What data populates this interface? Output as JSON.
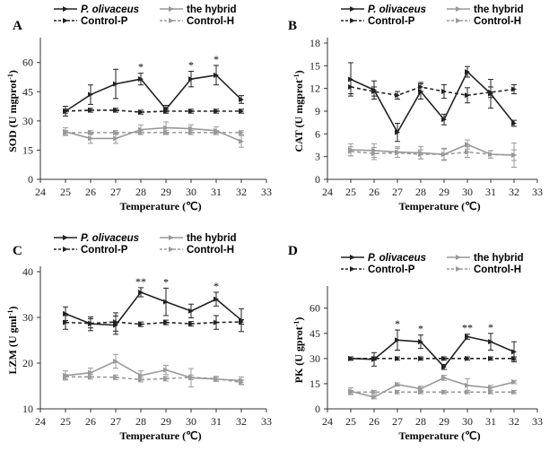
{
  "chart_data": [
    {
      "type": "line",
      "panel_letter": "A",
      "xlabel": "Temperature (℃)",
      "ylabel": "SOD (U mgprot",
      "ylabel_sup": "-1",
      "ylabel_close": ")",
      "x_ticks": [
        24,
        25,
        26,
        27,
        28,
        29,
        30,
        31,
        32,
        33
      ],
      "y_ticks": [
        0,
        15,
        30,
        45,
        60
      ],
      "xlim": [
        24,
        33
      ],
      "ylim": [
        0,
        70
      ],
      "x": [
        25,
        26,
        27,
        28,
        29,
        30,
        31,
        32
      ],
      "series": [
        {
          "name": "P. olivaceus",
          "values": [
            35,
            43.5,
            49,
            51.5,
            36,
            51.5,
            53.5,
            41
          ],
          "err": [
            2.5,
            5,
            7.5,
            3,
            2,
            4,
            5,
            2
          ]
        },
        {
          "name": "the hybrid",
          "values": [
            24.5,
            21,
            21,
            25.5,
            26.5,
            26,
            25,
            19.5
          ],
          "err": [
            2,
            2.5,
            2.5,
            2.5,
            3,
            2,
            2,
            3
          ]
        },
        {
          "name": "Control-P",
          "values": [
            35,
            35.5,
            35.5,
            34.5,
            35,
            35,
            35,
            35
          ],
          "err": [
            1,
            1,
            1,
            1,
            1,
            1,
            1,
            1
          ]
        },
        {
          "name": "Control-H",
          "values": [
            24,
            24,
            24,
            24,
            24,
            24,
            24,
            24
          ],
          "err": [
            1,
            1,
            1,
            1,
            1,
            1,
            1,
            1
          ]
        }
      ],
      "annotations": [
        {
          "x": 28,
          "text": "*"
        },
        {
          "x": 30,
          "text": "*"
        },
        {
          "x": 31,
          "text": "*"
        }
      ]
    },
    {
      "type": "line",
      "panel_letter": "B",
      "xlabel": "Temperature (℃)",
      "ylabel": "CAT (U mgprot",
      "ylabel_sup": "-1",
      "ylabel_close": ")",
      "x_ticks": [
        24,
        25,
        26,
        27,
        28,
        29,
        30,
        31,
        32,
        33
      ],
      "y_ticks": [
        0,
        3,
        6,
        9,
        12,
        15,
        18
      ],
      "xlim": [
        24,
        33
      ],
      "ylim": [
        0,
        18
      ],
      "x": [
        25,
        26,
        27,
        28,
        29,
        30,
        31,
        32
      ],
      "series": [
        {
          "name": "P. olivaceus",
          "values": [
            13.2,
            11.8,
            6.2,
            11.6,
            7.9,
            14.2,
            11.3,
            7.4
          ],
          "err": [
            2.2,
            1.2,
            1.2,
            1.0,
            0.7,
            0.7,
            1.9,
            0.4
          ]
        },
        {
          "name": "the hybrid",
          "values": [
            3.9,
            3.8,
            3.6,
            3.5,
            3.3,
            4.6,
            3.3,
            3.2
          ],
          "err": [
            0.8,
            0.9,
            0.7,
            0.8,
            0.7,
            0.6,
            0.5,
            1.6
          ]
        },
        {
          "name": "Control-P",
          "values": [
            12.2,
            11.6,
            11.1,
            12.2,
            11.6,
            11.1,
            11.5,
            11.9
          ],
          "err": [
            0.9,
            0.6,
            0.5,
            0.6,
            0.9,
            1.0,
            0.7,
            0.6
          ]
        },
        {
          "name": "Control-H",
          "values": [
            3.7,
            3.4,
            3.5,
            3.3,
            3.3,
            3.6,
            3.3,
            3.2
          ],
          "err": [
            0.6,
            0.8,
            0.6,
            0.6,
            0.8,
            0.7,
            0.5,
            0.7
          ]
        }
      ],
      "annotations": []
    },
    {
      "type": "line",
      "panel_letter": "C",
      "xlabel": "Temperature (℃)",
      "ylabel": "LZM (U gml",
      "ylabel_sup": "-1",
      "ylabel_close": ")",
      "x_ticks": [
        24,
        25,
        26,
        27,
        28,
        29,
        30,
        31,
        32,
        33
      ],
      "y_ticks": [
        10,
        20,
        30,
        40
      ],
      "xlim": [
        24,
        33
      ],
      "ylim": [
        10,
        40
      ],
      "x": [
        25,
        26,
        27,
        28,
        29,
        30,
        31,
        32
      ],
      "series": [
        {
          "name": "P. olivaceus",
          "values": [
            30.8,
            28.6,
            28.3,
            35.5,
            33.4,
            31.4,
            34,
            29.4
          ],
          "err": [
            1.5,
            1.5,
            2,
            1,
            3,
            1.5,
            1.5,
            2.5
          ]
        },
        {
          "name": "the hybrid",
          "values": [
            17.3,
            17.9,
            20.4,
            17.3,
            18.5,
            16.8,
            16.5,
            16.2
          ],
          "err": [
            1,
            1,
            1.5,
            1,
            1,
            2,
            0.5,
            0.8
          ]
        },
        {
          "name": "Control-P",
          "values": [
            28.9,
            28.7,
            29,
            28.5,
            28.9,
            28.6,
            28.9,
            29
          ],
          "err": [
            1.5,
            1,
            2,
            0.5,
            0.5,
            0.5,
            1.5,
            0.5
          ]
        },
        {
          "name": "Control-H",
          "values": [
            17,
            17,
            16.9,
            16.4,
            16.6,
            16.9,
            16.6,
            15.8
          ],
          "err": [
            0.5,
            0.5,
            0.5,
            0.5,
            0.5,
            0.5,
            0.5,
            0.5
          ]
        }
      ],
      "annotations": [
        {
          "x": 28,
          "text": "**"
        },
        {
          "x": 29,
          "text": "*"
        },
        {
          "x": 31,
          "text": "*"
        }
      ]
    },
    {
      "type": "line",
      "panel_letter": "D",
      "xlabel": "Temperature (℃)",
      "ylabel": "PK (U gprot",
      "ylabel_sup": "-1",
      "ylabel_close": ")",
      "x_ticks": [
        24,
        25,
        26,
        27,
        28,
        29,
        30,
        31,
        32,
        33
      ],
      "y_ticks": [
        0,
        15,
        30,
        45,
        60
      ],
      "xlim": [
        24,
        33
      ],
      "ylim": [
        0,
        70
      ],
      "x": [
        25,
        26,
        27,
        28,
        29,
        30,
        31,
        32
      ],
      "series": [
        {
          "name": "P. olivaceus",
          "values": [
            30,
            29.5,
            41,
            40,
            25,
            43,
            40,
            34
          ],
          "err": [
            1,
            4,
            6,
            4,
            1.5,
            1.5,
            5,
            6
          ]
        },
        {
          "name": "the hybrid",
          "values": [
            10.5,
            7,
            14.5,
            12,
            18.5,
            14,
            12.5,
            16
          ],
          "err": [
            2,
            1,
            1,
            1.5,
            1.5,
            4,
            1.5,
            1
          ]
        },
        {
          "name": "Control-P",
          "values": [
            30,
            30,
            30,
            30,
            30,
            30,
            30,
            30
          ],
          "err": [
            1,
            1,
            1,
            1,
            1,
            1,
            1,
            1
          ]
        },
        {
          "name": "Control-H",
          "values": [
            10,
            10,
            10,
            10,
            10,
            10,
            10,
            10
          ],
          "err": [
            1,
            1,
            1,
            1,
            1,
            1,
            1,
            1
          ]
        }
      ],
      "annotations": [
        {
          "x": 27,
          "text": "*"
        },
        {
          "x": 28,
          "text": "*"
        },
        {
          "x": 30,
          "text": "**"
        },
        {
          "x": 31,
          "text": "*"
        }
      ]
    }
  ],
  "series_colors": {
    "P. olivaceus": "#222222",
    "the hybrid": "#999999",
    "Control-P": "#222222",
    "Control-H": "#999999"
  },
  "series_dashed": {
    "P. olivaceus": false,
    "the hybrid": false,
    "Control-P": true,
    "Control-H": true
  }
}
